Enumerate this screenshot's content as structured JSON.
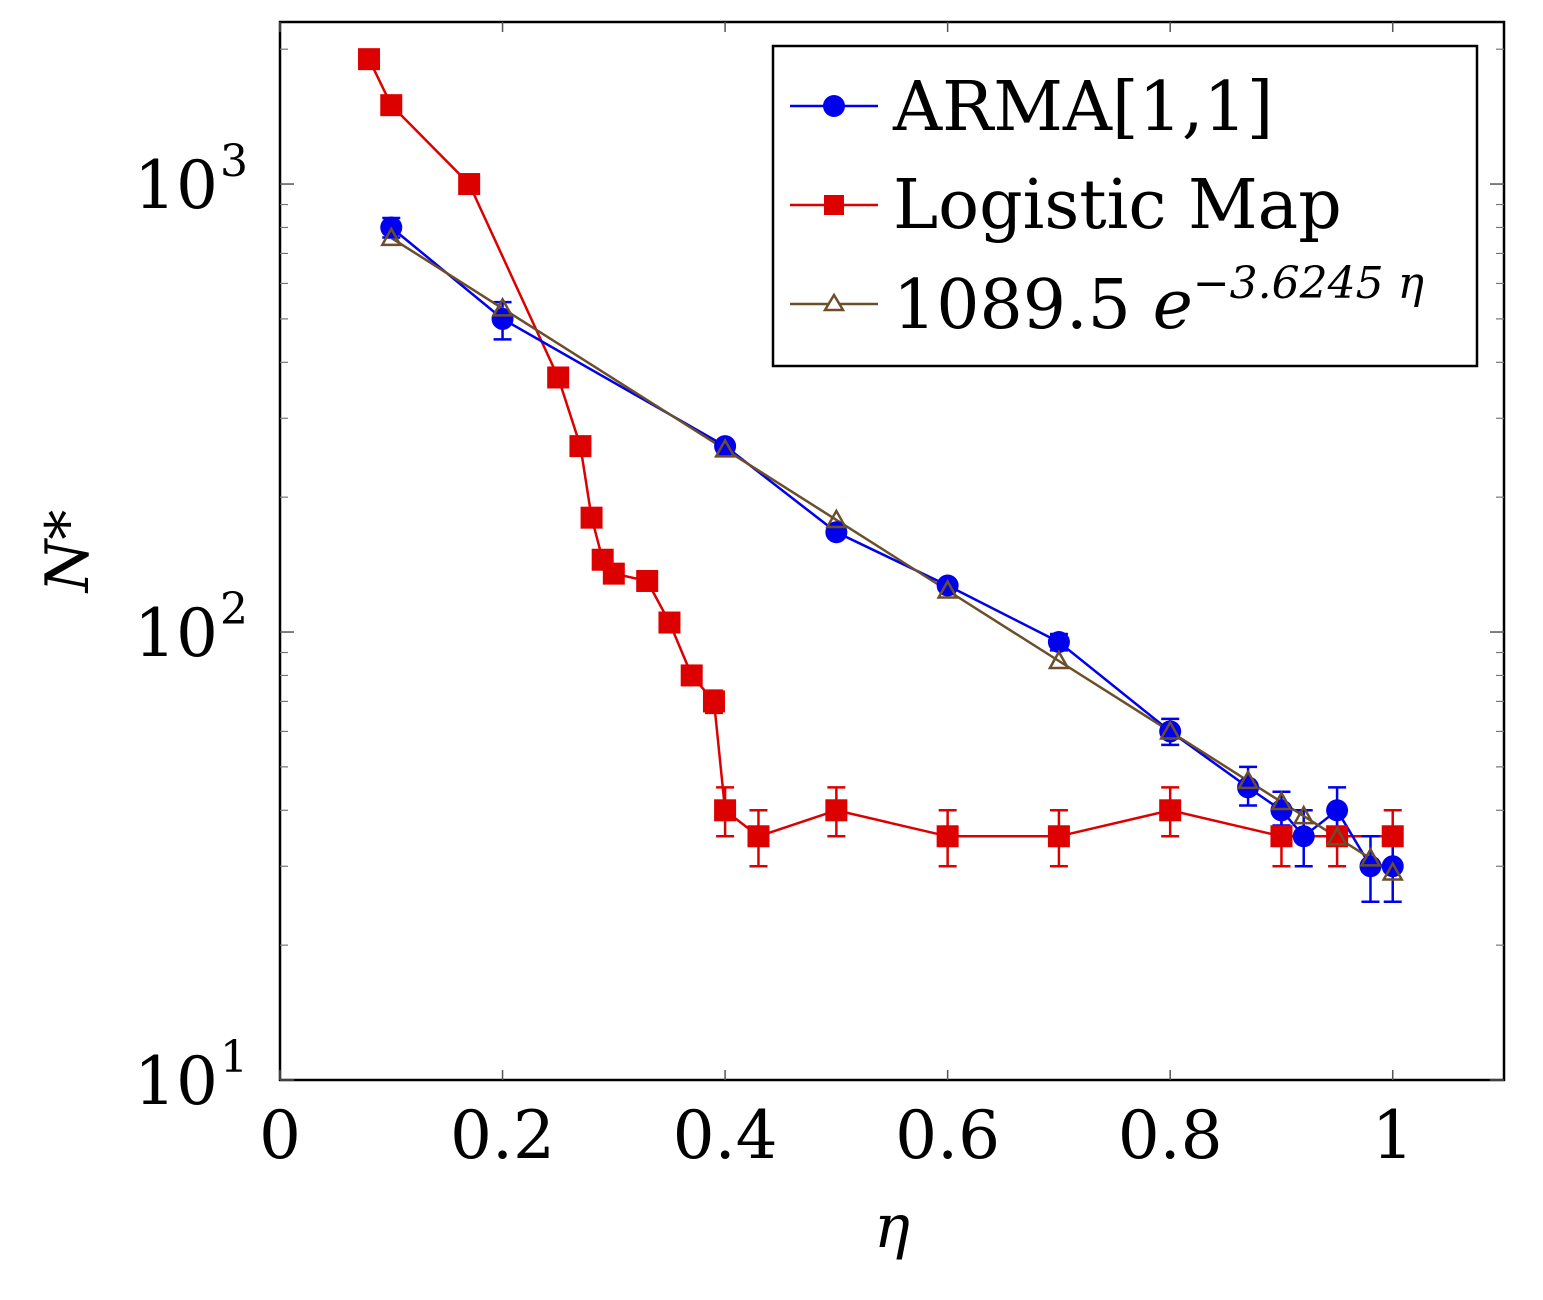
{
  "chart_data": {
    "type": "line",
    "title": "",
    "xlabel": "η",
    "ylabel": "N*",
    "xlim": [
      0,
      1.1
    ],
    "ylim": [
      10,
      2300
    ],
    "yscale": "log",
    "grid": false,
    "legend_position": "top-right",
    "x_ticks": [
      {
        "value": 0,
        "label": "0"
      },
      {
        "value": 0.2,
        "label": "0.2"
      },
      {
        "value": 0.4,
        "label": "0.4"
      },
      {
        "value": 0.6,
        "label": "0.6"
      },
      {
        "value": 0.8,
        "label": "0.8"
      },
      {
        "value": 1,
        "label": "1"
      }
    ],
    "y_ticks": [
      {
        "value": 10,
        "base": "10",
        "exp": "1"
      },
      {
        "value": 100,
        "base": "10",
        "exp": "2"
      },
      {
        "value": 1000,
        "base": "10",
        "exp": "3"
      }
    ],
    "series": [
      {
        "name": "ARMA[1,1]",
        "color": "#0000ee",
        "marker": "circle",
        "points": [
          {
            "x": 0.1,
            "y": 800,
            "lo": 760,
            "hi": 840
          },
          {
            "x": 0.2,
            "y": 500,
            "lo": 450,
            "hi": 545
          },
          {
            "x": 0.4,
            "y": 260,
            "lo": 253,
            "hi": 267
          },
          {
            "x": 0.5,
            "y": 167,
            "lo": 163,
            "hi": 171
          },
          {
            "x": 0.6,
            "y": 127,
            "lo": 124,
            "hi": 130
          },
          {
            "x": 0.7,
            "y": 95,
            "lo": 91,
            "hi": 99
          },
          {
            "x": 0.8,
            "y": 60,
            "lo": 56,
            "hi": 64
          },
          {
            "x": 0.87,
            "y": 45,
            "lo": 41,
            "hi": 50
          },
          {
            "x": 0.9,
            "y": 40,
            "lo": 37,
            "hi": 44
          },
          {
            "x": 0.92,
            "y": 35,
            "lo": 30,
            "hi": 40
          },
          {
            "x": 0.95,
            "y": 40,
            "lo": 35,
            "hi": 45
          },
          {
            "x": 0.98,
            "y": 30,
            "lo": 25,
            "hi": 35
          },
          {
            "x": 1.0,
            "y": 30,
            "lo": 25,
            "hi": 35
          }
        ]
      },
      {
        "name": "Logistic Map",
        "color": "#dd0000",
        "marker": "square",
        "points": [
          {
            "x": 0.08,
            "y": 1900
          },
          {
            "x": 0.1,
            "y": 1500
          },
          {
            "x": 0.17,
            "y": 1000
          },
          {
            "x": 0.25,
            "y": 370
          },
          {
            "x": 0.27,
            "y": 260
          },
          {
            "x": 0.28,
            "y": 180
          },
          {
            "x": 0.29,
            "y": 145
          },
          {
            "x": 0.3,
            "y": 135
          },
          {
            "x": 0.33,
            "y": 130
          },
          {
            "x": 0.35,
            "y": 105
          },
          {
            "x": 0.37,
            "y": 80
          },
          {
            "x": 0.39,
            "y": 70,
            "lo": 66,
            "hi": 74
          },
          {
            "x": 0.4,
            "y": 40,
            "lo": 35,
            "hi": 45
          },
          {
            "x": 0.43,
            "y": 35,
            "lo": 30,
            "hi": 40
          },
          {
            "x": 0.5,
            "y": 40,
            "lo": 35,
            "hi": 45
          },
          {
            "x": 0.6,
            "y": 35,
            "lo": 30,
            "hi": 40
          },
          {
            "x": 0.7,
            "y": 35,
            "lo": 30,
            "hi": 40
          },
          {
            "x": 0.8,
            "y": 40,
            "lo": 35,
            "hi": 45
          },
          {
            "x": 0.9,
            "y": 35,
            "lo": 30,
            "hi": 40
          },
          {
            "x": 0.95,
            "y": 35,
            "lo": 30,
            "hi": 40
          },
          {
            "x": 1.0,
            "y": 35,
            "lo": 30,
            "hi": 40
          }
        ]
      },
      {
        "name": "1089.5 e^{-3.6245 η}",
        "color": "#6b4f2a",
        "marker": "triangle",
        "formula": {
          "coef": 1089.5,
          "rate": -3.6245
        },
        "x": [
          0.1,
          0.2,
          0.4,
          0.5,
          0.6,
          0.7,
          0.8,
          0.87,
          0.9,
          0.92,
          0.95,
          0.98,
          1.0
        ]
      }
    ],
    "legend": [
      {
        "label": "ARMA[1,1]"
      },
      {
        "label": "Logistic Map"
      },
      {
        "label_main": "1089.5 ",
        "label_e": "e",
        "label_exp": "−3.6245 η"
      }
    ]
  }
}
